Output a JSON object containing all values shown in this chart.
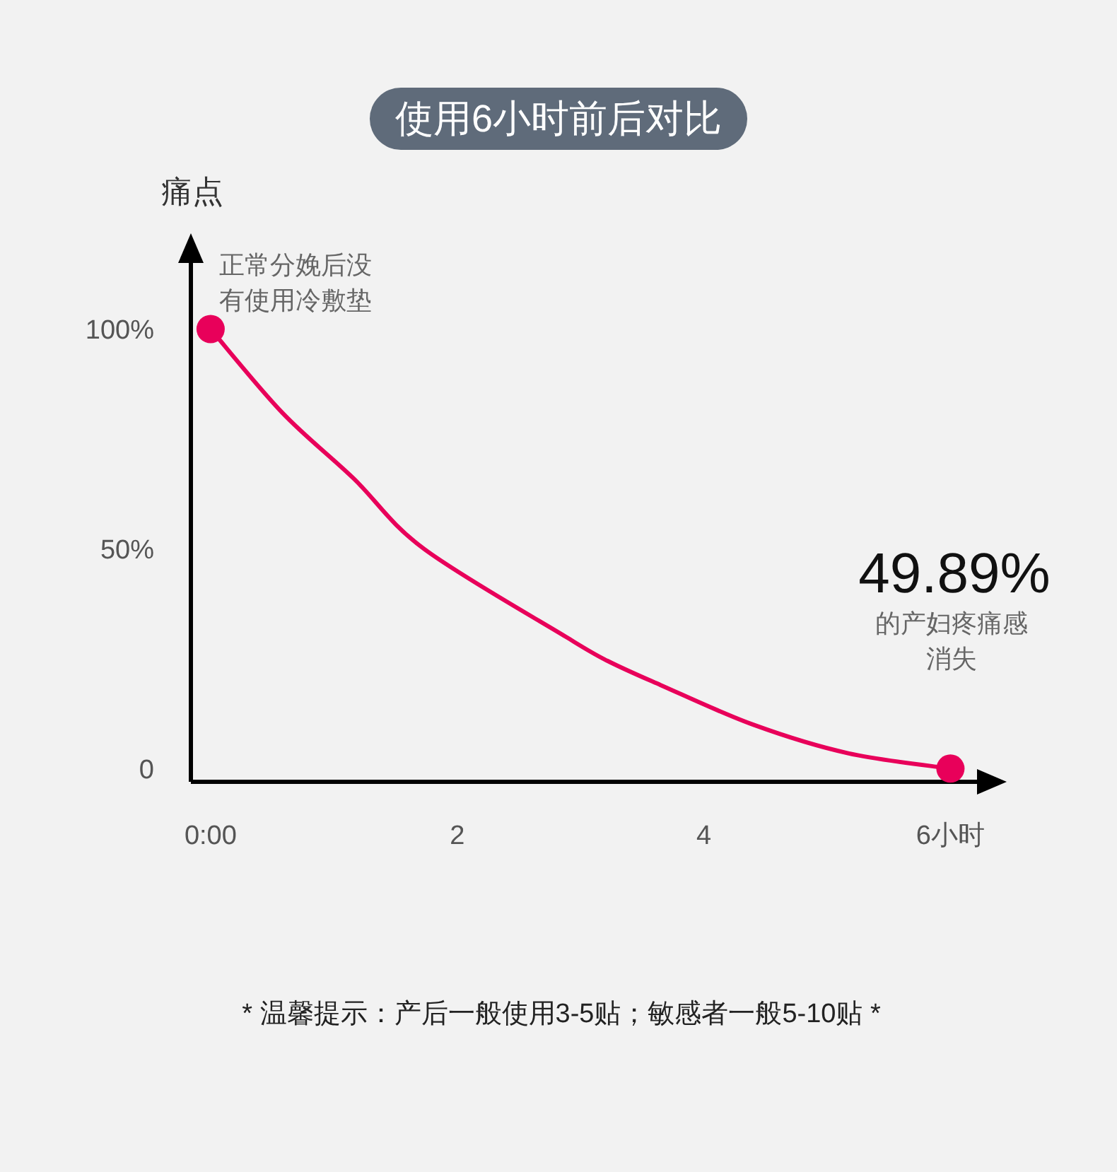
{
  "chart_data": {
    "type": "line",
    "title": "使用6小时前后对比",
    "ylabel": "痛点",
    "x": [
      0,
      0.58,
      1.16,
      1.73,
      2.88,
      3.22,
      3.65,
      4.4,
      5.17,
      6
    ],
    "series": [
      {
        "color": "#e8005a",
        "marker": "none",
        "values": [
          100,
          81,
          66,
          50,
          30,
          24.5,
          19,
          10,
          3.5,
          0
        ]
      },
      {
        "type": "scatter",
        "color": "#e8005a",
        "marker": "circle",
        "x": [
          0,
          6
        ],
        "values": [
          100,
          0
        ]
      }
    ],
    "xlim": [
      -0.16,
      6.25
    ],
    "ylim": [
      -3,
      116
    ],
    "xticks": [
      {
        "value": 0,
        "label": "0:00"
      },
      2,
      4,
      {
        "value": 6,
        "label": "6小时"
      }
    ],
    "yticks": [
      {
        "value": 0,
        "label": "0"
      },
      {
        "value": 50,
        "label": "50%"
      },
      {
        "value": 100,
        "label": "100%"
      }
    ],
    "grid": false,
    "annotations": [
      {
        "text": "正常分娩后没有使用冷敷垫",
        "x": 0,
        "y": 100
      },
      "49.89%",
      "的产妇疼痛感消失",
      "* 温馨提示：产后一般使用3-5贴；敏感者一般5-10贴 *"
    ]
  }
}
